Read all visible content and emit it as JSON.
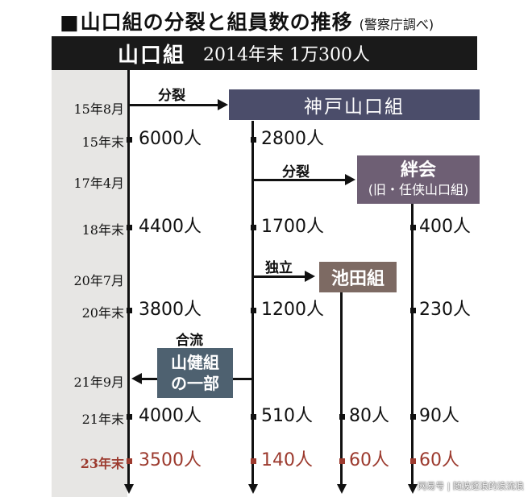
{
  "title": {
    "square": "■",
    "main": "山口組の分裂と組員数の推移",
    "source": "(警察庁調べ)"
  },
  "banner": {
    "name": "山口組",
    "stat": "2014年末 1万300人"
  },
  "dates": [
    "15年8月",
    "15年末",
    "17年4月",
    "18年末",
    "20年7月",
    "20年末",
    "21年9月",
    "21年末",
    "23年末"
  ],
  "events": {
    "split_2015": "分裂",
    "split_2017": "分裂",
    "independence_2020": "独立",
    "merge_2021": "合流"
  },
  "organizations": {
    "kobe": {
      "name": "神戸山口組",
      "color": "#4b4d6a"
    },
    "kizuna": {
      "name": "絆会",
      "sub": "(旧・任侠山口組)",
      "color": "#6e5f74"
    },
    "ikeda": {
      "name": "池田組",
      "color": "#7d6a63"
    },
    "yamaken": {
      "name_line1": "山健組",
      "name_line2": "の一部",
      "color": "#4e6170"
    }
  },
  "members": {
    "yamaguchi": [
      "6000人",
      "4400人",
      "3800人",
      "4000人",
      "3500人"
    ],
    "kobe": [
      "2800人",
      "1700人",
      "1200人",
      "510人",
      "140人"
    ],
    "kizuna": [
      "400人",
      "230人",
      "90人",
      "60人"
    ],
    "ikeda": [
      "80人",
      "60人"
    ]
  },
  "watermark": "网易号 | 随波逐浪的浪流浪"
}
